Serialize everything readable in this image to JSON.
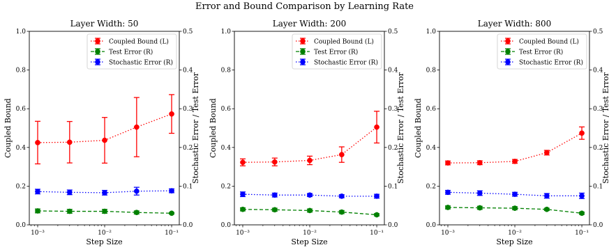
{
  "suptitle": "Error and Bound Comparison by Learning Rate",
  "chart_data": [
    {
      "type": "line",
      "title": "Layer Width: 50",
      "xlabel": "Step Size",
      "ylabel_left": "Coupled Bound",
      "ylabel_right": "Stochastic Error / Test Error",
      "xscale": "log",
      "xlim": [
        0.00075,
        0.13
      ],
      "xticks": [
        0.001,
        0.01,
        0.1
      ],
      "xtick_labels": [
        "10⁻³",
        "10⁻²",
        "10⁻¹"
      ],
      "ylim_left": [
        0.0,
        1.0
      ],
      "yticks_left": [
        "0.0",
        "0.2",
        "0.4",
        "0.6",
        "0.8",
        "1.0"
      ],
      "ylim_right": [
        0.0,
        0.5
      ],
      "yticks_right": [
        "0.0",
        "0.1",
        "0.2",
        "0.3",
        "0.4",
        "0.5"
      ],
      "legend": "top-right",
      "x": [
        0.001,
        0.003,
        0.01,
        0.03,
        0.1
      ],
      "series": [
        {
          "name": "Coupled Bound (L)",
          "axis": "left",
          "color": "#ff0000",
          "dash": "dotted",
          "values": [
            0.425,
            0.427,
            0.437,
            0.505,
            0.573
          ],
          "errors": [
            0.11,
            0.107,
            0.118,
            0.153,
            0.1
          ]
        },
        {
          "name": "Test Error (R)",
          "axis": "right",
          "color": "#008000",
          "dash": "dashed",
          "values": [
            0.036,
            0.035,
            0.035,
            0.032,
            0.03
          ],
          "errors": [
            0.005,
            0.005,
            0.005,
            0.004,
            0.002
          ]
        },
        {
          "name": "Stochastic Error (R)",
          "axis": "right",
          "color": "#0000ff",
          "dash": "dotted",
          "values": [
            0.086,
            0.084,
            0.083,
            0.087,
            0.088
          ],
          "errors": [
            0.006,
            0.006,
            0.006,
            0.01,
            0.005
          ]
        }
      ]
    },
    {
      "type": "line",
      "title": "Layer Width: 200",
      "xlabel": "Step Size",
      "ylabel_left": "Coupled Bound",
      "ylabel_right": "Stochastic Error / Test Error",
      "xscale": "log",
      "xlim": [
        0.00075,
        0.13
      ],
      "xticks": [
        0.001,
        0.01,
        0.1
      ],
      "xtick_labels": [
        "10⁻³",
        "10⁻²",
        "10⁻¹"
      ],
      "ylim_left": [
        0.0,
        1.0
      ],
      "yticks_left": [
        "0.0",
        "0.2",
        "0.4",
        "0.6",
        "0.8",
        "1.0"
      ],
      "ylim_right": [
        0.0,
        0.5
      ],
      "yticks_right": [
        "0.0",
        "0.1",
        "0.2",
        "0.3",
        "0.4",
        "0.5"
      ],
      "legend": "top-right",
      "x": [
        0.001,
        0.003,
        0.01,
        0.03,
        0.1
      ],
      "series": [
        {
          "name": "Coupled Bound (L)",
          "axis": "left",
          "color": "#ff0000",
          "dash": "dotted",
          "values": [
            0.323,
            0.325,
            0.333,
            0.363,
            0.505
          ],
          "errors": [
            0.018,
            0.02,
            0.022,
            0.04,
            0.082
          ]
        },
        {
          "name": "Test Error (R)",
          "axis": "right",
          "color": "#008000",
          "dash": "dashed",
          "values": [
            0.04,
            0.039,
            0.037,
            0.033,
            0.026
          ],
          "errors": [
            0.004,
            0.004,
            0.004,
            0.004,
            0.003
          ]
        },
        {
          "name": "Stochastic Error (R)",
          "axis": "right",
          "color": "#0000ff",
          "dash": "dotted",
          "values": [
            0.079,
            0.077,
            0.077,
            0.074,
            0.074
          ],
          "errors": [
            0.006,
            0.005,
            0.004,
            0.004,
            0.005
          ]
        }
      ]
    },
    {
      "type": "line",
      "title": "Layer Width: 800",
      "xlabel": "Step Size",
      "ylabel_left": "Coupled Bound",
      "ylabel_right": "Stochastic Error / Test Error",
      "xscale": "log",
      "xlim": [
        0.00075,
        0.13
      ],
      "xticks": [
        0.001,
        0.01,
        0.1
      ],
      "xtick_labels": [
        "10⁻³",
        "10⁻²",
        "10⁻¹"
      ],
      "ylim_left": [
        0.0,
        1.0
      ],
      "yticks_left": [
        "0.0",
        "0.2",
        "0.4",
        "0.6",
        "0.8",
        "1.0"
      ],
      "ylim_right": [
        0.0,
        0.5
      ],
      "yticks_right": [
        "0.0",
        "0.1",
        "0.2",
        "0.3",
        "0.4",
        "0.5"
      ],
      "legend": "top-right",
      "x": [
        0.001,
        0.003,
        0.01,
        0.03,
        0.1
      ],
      "series": [
        {
          "name": "Coupled Bound (L)",
          "axis": "left",
          "color": "#ff0000",
          "dash": "dotted",
          "values": [
            0.32,
            0.321,
            0.328,
            0.373,
            0.474
          ],
          "errors": [
            0.01,
            0.01,
            0.01,
            0.012,
            0.032
          ]
        },
        {
          "name": "Test Error (R)",
          "axis": "right",
          "color": "#008000",
          "dash": "dashed",
          "values": [
            0.045,
            0.044,
            0.043,
            0.04,
            0.03
          ],
          "errors": [
            0.004,
            0.004,
            0.004,
            0.003,
            0.003
          ]
        },
        {
          "name": "Stochastic Error (R)",
          "axis": "right",
          "color": "#0000ff",
          "dash": "dotted",
          "values": [
            0.084,
            0.082,
            0.079,
            0.075,
            0.075
          ],
          "errors": [
            0.005,
            0.006,
            0.005,
            0.006,
            0.007
          ]
        }
      ]
    }
  ]
}
